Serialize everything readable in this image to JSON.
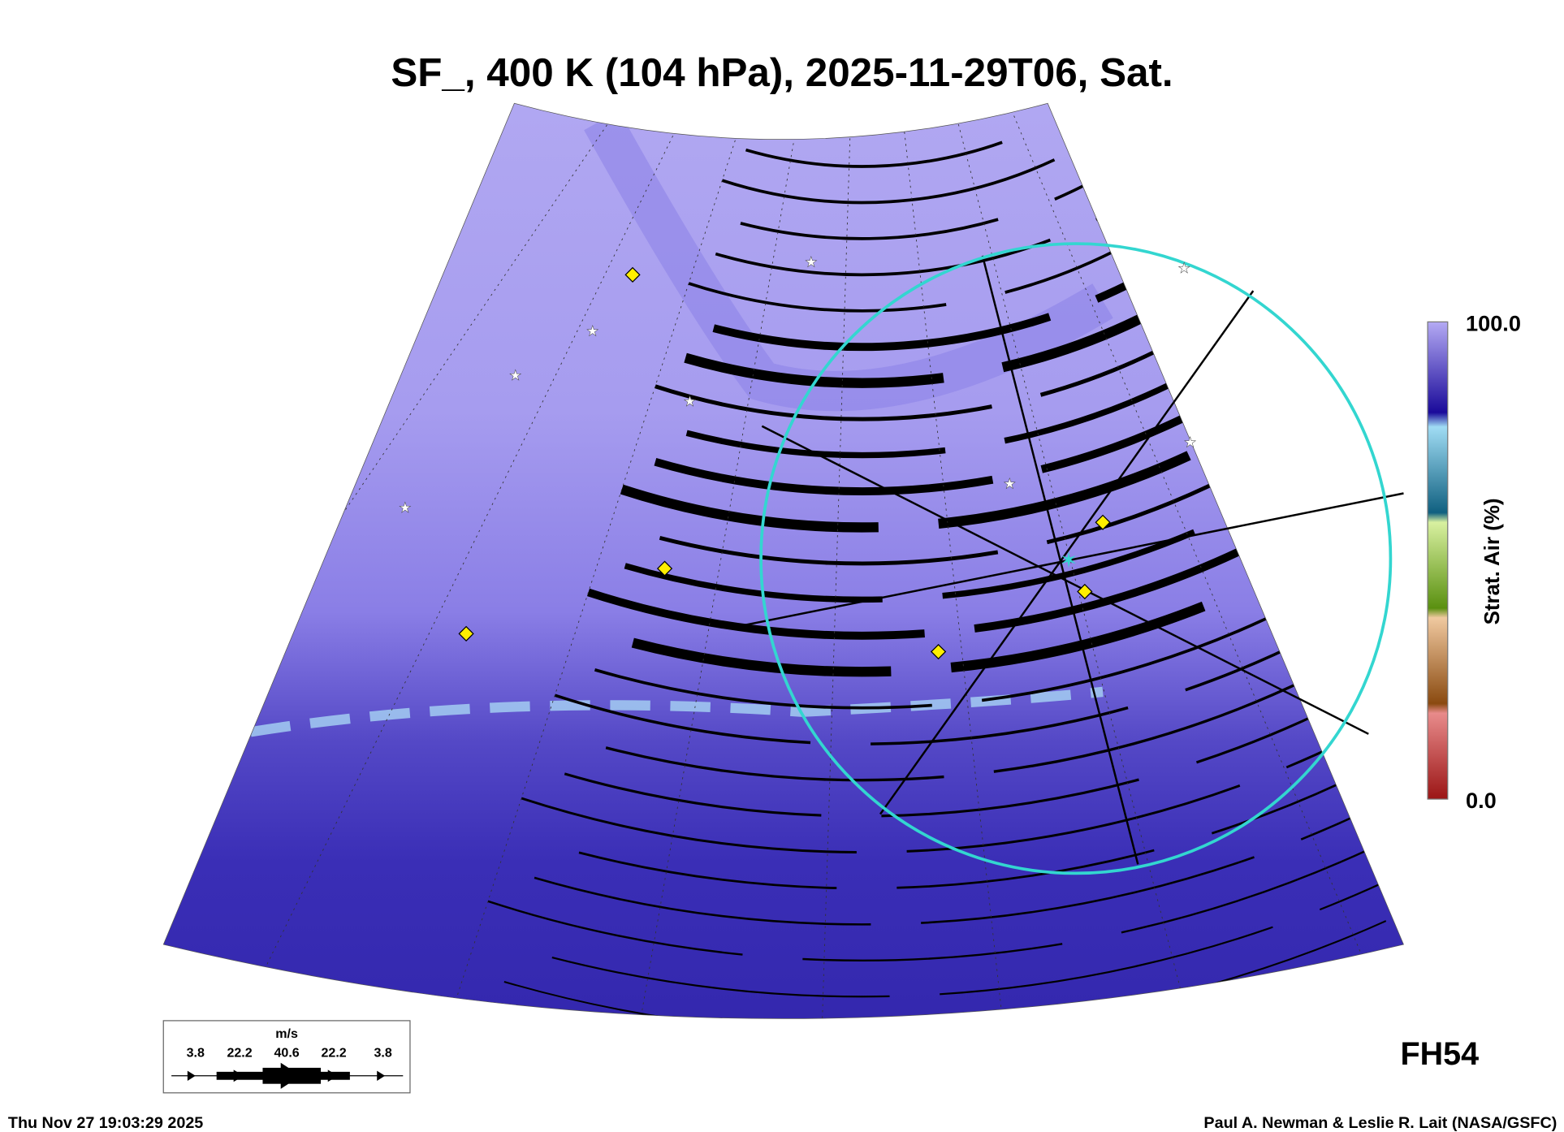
{
  "title": "SF_, 400 K (104 hPa), 2025-11-29T06, Sat.",
  "colorbar": {
    "label": "Strat. Air (%)",
    "max_label": "100.0",
    "min_label": "0.0",
    "colors": [
      "#9b1515",
      "#e88b8b",
      "#8a4a10",
      "#f0c9a0",
      "#5a9010",
      "#d8f0a0",
      "#106080",
      "#a0dcf4",
      "#1a0a9a",
      "#b4aaf4"
    ]
  },
  "wind_legend": {
    "units": "m/s",
    "values": [
      "3.8",
      "22.2",
      "40.6",
      "22.2",
      "3.8"
    ]
  },
  "forecast_hour": "FH54",
  "footer": {
    "timestamp": "Thu Nov 27 19:03:29 2025",
    "credit": "Paul A. Newman & Leslie R. Lait (NASA/GSFC)"
  },
  "colors": {
    "circle": "#33d6d0",
    "marker": "#ffee00"
  }
}
